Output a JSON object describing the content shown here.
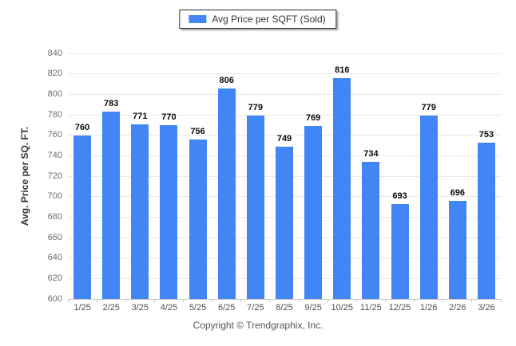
{
  "legend": {
    "label": "Avg Price per SQFT (Sold)"
  },
  "y_axis_title": "Avg. Price per SQ. FT.",
  "footer": {
    "copyright": "Copyright © Trendgraphix, Inc."
  },
  "colors": {
    "bar": "#4285f4",
    "gridline": "#e9e9e9",
    "axis_line": "#c6c6c6",
    "value_label": "#0a0a0a",
    "y_tick_label": "#6e6e6e",
    "x_tick_label": "#4f4f4f"
  },
  "chart_data": {
    "type": "bar",
    "title": "",
    "series_name": "Avg Price per SQFT (Sold)",
    "categories": [
      "1/25",
      "2/25",
      "3/25",
      "4/25",
      "5/25",
      "6/25",
      "7/25",
      "8/25",
      "9/25",
      "10/25",
      "11/25",
      "12/25",
      "1/26",
      "2/26",
      "3/26"
    ],
    "values": [
      760,
      783,
      771,
      770,
      756,
      806,
      779,
      749,
      769,
      816,
      734,
      693,
      779,
      696,
      753
    ],
    "bar_labels": true,
    "xlabel": "",
    "ylabel": "Avg. Price per SQ. FT.",
    "ylim": [
      600,
      840
    ],
    "ytick_step": 20,
    "yticks": [
      600,
      620,
      640,
      660,
      680,
      700,
      720,
      740,
      760,
      780,
      800,
      820,
      840
    ],
    "grid": "horizontal",
    "legend_position": "top-center"
  }
}
